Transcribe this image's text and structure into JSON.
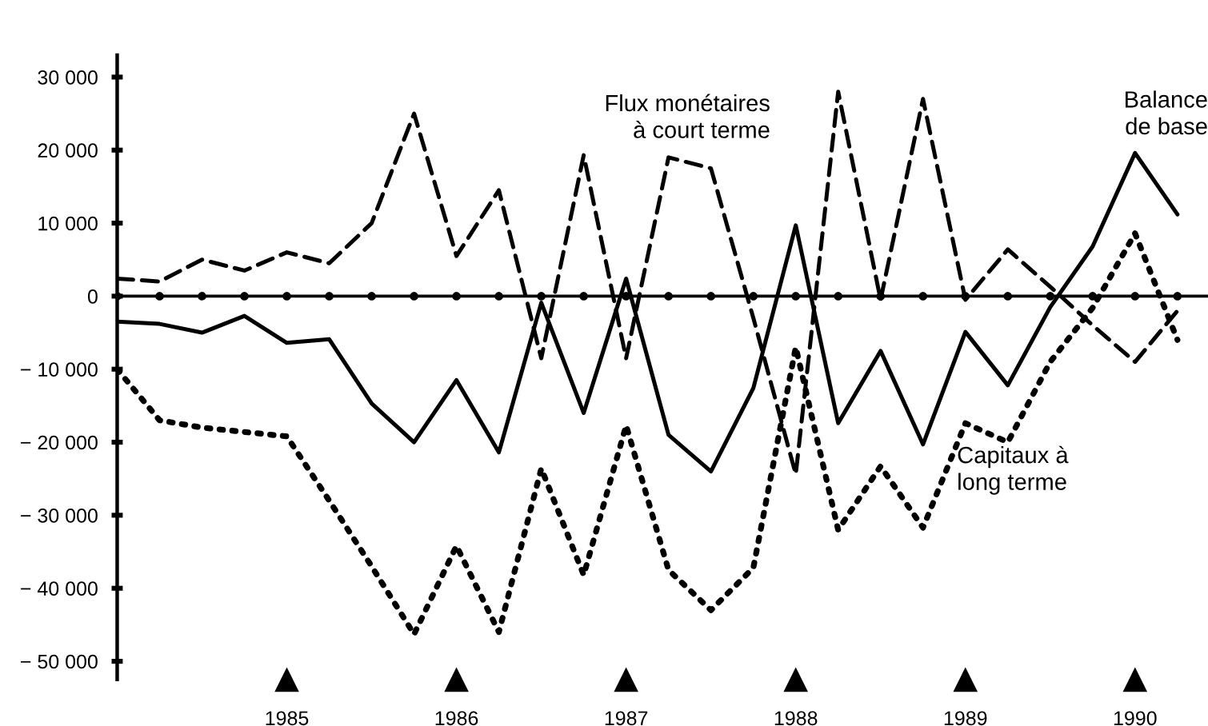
{
  "chart_data": {
    "type": "line",
    "x": [
      1984.0,
      1984.25,
      1984.5,
      1984.75,
      1985.0,
      1985.25,
      1985.5,
      1985.75,
      1986.0,
      1986.25,
      1986.5,
      1986.75,
      1987.0,
      1987.25,
      1987.5,
      1987.75,
      1988.0,
      1988.25,
      1988.5,
      1988.75,
      1989.0,
      1989.25,
      1989.5,
      1989.75,
      1990.0,
      1990.25
    ],
    "series": [
      {
        "name": "Flux monétaires\nà court terme",
        "color": "#000000",
        "line_style": "dashed",
        "values": [
          2400,
          2000,
          5000,
          3500,
          6000,
          4500,
          10000,
          25000,
          5500,
          14500,
          -8500,
          19300,
          -8500,
          19000,
          17500,
          -3000,
          -24400,
          28000,
          -500,
          27000,
          -500,
          6400,
          1300,
          -4000,
          -9000,
          -2000
        ]
      },
      {
        "name": "Balance\nde base",
        "color": "#000000",
        "line_style": "solid",
        "values": [
          -3500,
          -3800,
          -5000,
          -2700,
          -6400,
          -5900,
          -14700,
          -20000,
          -11500,
          -21400,
          -900,
          -16000,
          2400,
          -19000,
          -24000,
          -12600,
          9700,
          -17400,
          -7500,
          -20300,
          -4900,
          -12200,
          -1500,
          6800,
          19600,
          11200
        ]
      },
      {
        "type": "scatter",
        "color": "#000000",
        "marker": "circle",
        "values": [
          0,
          0,
          0,
          0,
          0,
          0,
          0,
          0,
          0,
          0,
          0,
          0,
          0,
          0,
          0,
          0,
          0,
          0,
          0,
          0,
          0,
          0,
          0,
          0,
          0,
          0
        ]
      },
      {
        "name": "Capitaux à\nlong terme",
        "color": "#000000",
        "line_style": "dotted",
        "values": [
          -10000,
          -17000,
          -18000,
          -18600,
          -19200,
          -28000,
          -37000,
          -46300,
          -34200,
          -46000,
          -23600,
          -38200,
          -17700,
          -37500,
          -43000,
          -37200,
          -7000,
          -32000,
          -23300,
          -31700,
          -17400,
          -20000,
          -9000,
          -1600,
          8600,
          -6000
        ]
      }
    ],
    "xlim": [
      1984.0,
      1990.43
    ],
    "xticks": [
      1985,
      1986,
      1987,
      1988,
      1989,
      1990
    ],
    "ylim": [
      -52500,
      33000
    ],
    "yticks": [
      {
        "value": 30000,
        "label": "30 000"
      },
      {
        "value": 20000,
        "label": "20 000"
      },
      {
        "value": 10000,
        "label": "10 000"
      },
      0,
      {
        "value": -10000,
        "label": "− 10 000"
      },
      {
        "value": -20000,
        "label": "− 20 000"
      },
      {
        "value": -30000,
        "label": "− 30 000"
      },
      {
        "value": -40000,
        "label": "− 40 000"
      },
      {
        "value": -50000,
        "label": "− 50 000"
      }
    ],
    "ref_lines": [
      {
        "axis": "y",
        "value": 0,
        "color": "#000000"
      }
    ],
    "grid": false,
    "legend": false,
    "marker": "none"
  }
}
